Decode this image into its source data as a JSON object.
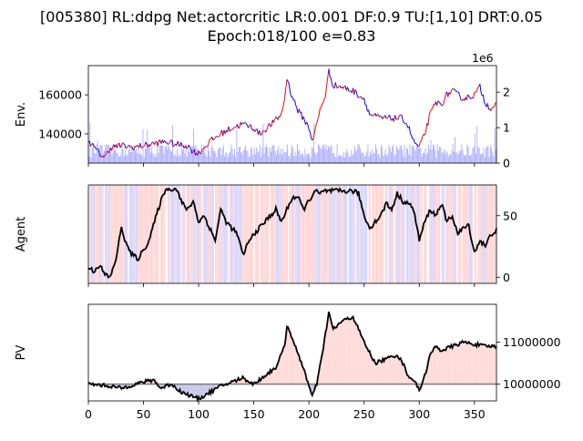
{
  "header": {
    "title_line1": "[005380] RL:ddpg Net:actorcritic LR:0.001 DF:0.9 TU:[1,10] DRT:0.05",
    "title_line2": "Epoch:018/100 e=0.83"
  },
  "chart_data": [
    {
      "type": "line",
      "panel": "env",
      "ylabel": "Env.",
      "xlim": [
        0,
        370
      ],
      "ylim": [
        125000,
        175000
      ],
      "yticks": [
        140000,
        160000
      ],
      "y2lim": [
        0,
        2.75
      ],
      "y2ticks": [
        0,
        1,
        2
      ],
      "y2_offset_label": "1e6",
      "price_knots": [
        [
          0,
          137000
        ],
        [
          5,
          133000
        ],
        [
          10,
          130000
        ],
        [
          15,
          128000
        ],
        [
          20,
          133000
        ],
        [
          30,
          134000
        ],
        [
          40,
          133000
        ],
        [
          50,
          134000
        ],
        [
          60,
          135000
        ],
        [
          70,
          136000
        ],
        [
          80,
          134500
        ],
        [
          90,
          134000
        ],
        [
          95,
          131000
        ],
        [
          100,
          130000
        ],
        [
          110,
          136000
        ],
        [
          120,
          140000
        ],
        [
          130,
          143000
        ],
        [
          140,
          145000
        ],
        [
          150,
          143000
        ],
        [
          155,
          140000
        ],
        [
          160,
          142000
        ],
        [
          170,
          147000
        ],
        [
          175,
          150000
        ],
        [
          178,
          158000
        ],
        [
          180,
          169000
        ],
        [
          183,
          162000
        ],
        [
          190,
          152000
        ],
        [
          195,
          148000
        ],
        [
          200,
          143000
        ],
        [
          203,
          137000
        ],
        [
          205,
          140000
        ],
        [
          210,
          152000
        ],
        [
          215,
          160000
        ],
        [
          218,
          172000
        ],
        [
          222,
          165000
        ],
        [
          230,
          164000
        ],
        [
          240,
          162000
        ],
        [
          250,
          158000
        ],
        [
          255,
          150000
        ],
        [
          265,
          148000
        ],
        [
          275,
          148000
        ],
        [
          285,
          148000
        ],
        [
          290,
          144000
        ],
        [
          295,
          136000
        ],
        [
          300,
          133000
        ],
        [
          305,
          140000
        ],
        [
          310,
          150000
        ],
        [
          315,
          156000
        ],
        [
          320,
          155000
        ],
        [
          325,
          160000
        ],
        [
          330,
          162000
        ],
        [
          340,
          158000
        ],
        [
          350,
          160000
        ],
        [
          355,
          164000
        ],
        [
          360,
          156000
        ],
        [
          365,
          153000
        ],
        [
          370,
          155000
        ]
      ],
      "volume_level": 0.35,
      "colors": {
        "price_up": "#ff0000",
        "price_down": "#0000ff",
        "volume": "#8080ff"
      }
    },
    {
      "type": "line",
      "panel": "agent",
      "ylabel": "Agent",
      "xlim": [
        0,
        370
      ],
      "ylim": [
        -5,
        75
      ],
      "y2ticks": [
        0,
        50
      ],
      "position_knots": [
        [
          0,
          8
        ],
        [
          5,
          5
        ],
        [
          10,
          10
        ],
        [
          15,
          2
        ],
        [
          20,
          0
        ],
        [
          25,
          15
        ],
        [
          30,
          40
        ],
        [
          35,
          25
        ],
        [
          40,
          18
        ],
        [
          45,
          15
        ],
        [
          50,
          22
        ],
        [
          55,
          30
        ],
        [
          60,
          45
        ],
        [
          65,
          60
        ],
        [
          70,
          72
        ],
        [
          80,
          72
        ],
        [
          85,
          60
        ],
        [
          90,
          55
        ],
        [
          95,
          62
        ],
        [
          100,
          45
        ],
        [
          105,
          50
        ],
        [
          110,
          40
        ],
        [
          115,
          30
        ],
        [
          120,
          55
        ],
        [
          125,
          45
        ],
        [
          130,
          40
        ],
        [
          135,
          35
        ],
        [
          140,
          18
        ],
        [
          145,
          28
        ],
        [
          150,
          35
        ],
        [
          155,
          40
        ],
        [
          160,
          45
        ],
        [
          170,
          55
        ],
        [
          175,
          45
        ],
        [
          180,
          55
        ],
        [
          185,
          65
        ],
        [
          190,
          65
        ],
        [
          195,
          55
        ],
        [
          200,
          62
        ],
        [
          205,
          70
        ],
        [
          210,
          68
        ],
        [
          215,
          70
        ],
        [
          220,
          70
        ],
        [
          230,
          70
        ],
        [
          240,
          70
        ],
        [
          245,
          68
        ],
        [
          250,
          50
        ],
        [
          255,
          40
        ],
        [
          260,
          45
        ],
        [
          265,
          50
        ],
        [
          270,
          60
        ],
        [
          275,
          55
        ],
        [
          280,
          68
        ],
        [
          285,
          62
        ],
        [
          290,
          60
        ],
        [
          295,
          55
        ],
        [
          300,
          30
        ],
        [
          305,
          45
        ],
        [
          310,
          55
        ],
        [
          315,
          50
        ],
        [
          320,
          60
        ],
        [
          325,
          45
        ],
        [
          330,
          50
        ],
        [
          335,
          35
        ],
        [
          340,
          40
        ],
        [
          345,
          42
        ],
        [
          350,
          20
        ],
        [
          355,
          30
        ],
        [
          360,
          25
        ],
        [
          365,
          35
        ],
        [
          370,
          38
        ]
      ],
      "colors": {
        "line": "#000000",
        "buy_band": "#ffcccc",
        "sell_band": "#ccccff"
      }
    },
    {
      "type": "area",
      "panel": "pv",
      "ylabel": "PV",
      "xlim": [
        0,
        370
      ],
      "xticks": [
        0,
        50,
        100,
        150,
        200,
        250,
        300,
        350
      ],
      "ylim": [
        9600000,
        11900000
      ],
      "yticks": [
        10000000,
        11000000
      ],
      "baseline": 10000000,
      "pv_knots": [
        [
          0,
          10000000
        ],
        [
          10,
          9980000
        ],
        [
          20,
          9950000
        ],
        [
          30,
          9900000
        ],
        [
          40,
          9980000
        ],
        [
          50,
          10050000
        ],
        [
          60,
          10100000
        ],
        [
          65,
          9900000
        ],
        [
          70,
          9950000
        ],
        [
          75,
          10000000
        ],
        [
          85,
          9800000
        ],
        [
          90,
          9750000
        ],
        [
          95,
          9700000
        ],
        [
          100,
          9650000
        ],
        [
          110,
          9800000
        ],
        [
          120,
          9950000
        ],
        [
          130,
          10050000
        ],
        [
          140,
          10150000
        ],
        [
          150,
          10000000
        ],
        [
          160,
          10200000
        ],
        [
          170,
          10400000
        ],
        [
          178,
          10900000
        ],
        [
          180,
          11400000
        ],
        [
          185,
          11100000
        ],
        [
          190,
          10700000
        ],
        [
          195,
          10400000
        ],
        [
          200,
          9950000
        ],
        [
          203,
          9700000
        ],
        [
          207,
          10000000
        ],
        [
          212,
          10700000
        ],
        [
          218,
          11700000
        ],
        [
          222,
          11300000
        ],
        [
          230,
          11500000
        ],
        [
          240,
          11600000
        ],
        [
          250,
          11000000
        ],
        [
          260,
          10500000
        ],
        [
          270,
          10600000
        ],
        [
          280,
          10700000
        ],
        [
          285,
          10500000
        ],
        [
          290,
          10200000
        ],
        [
          295,
          10100000
        ],
        [
          300,
          9850000
        ],
        [
          305,
          10200000
        ],
        [
          310,
          10700000
        ],
        [
          315,
          10900000
        ],
        [
          320,
          10800000
        ],
        [
          330,
          10900000
        ],
        [
          340,
          11000000
        ],
        [
          350,
          10950000
        ],
        [
          360,
          10900000
        ],
        [
          370,
          10900000
        ]
      ],
      "colors": {
        "line": "#000000",
        "baseline": "#808080",
        "gain_fill": "#ffdada",
        "loss_fill": "#c8c8e8"
      }
    }
  ]
}
